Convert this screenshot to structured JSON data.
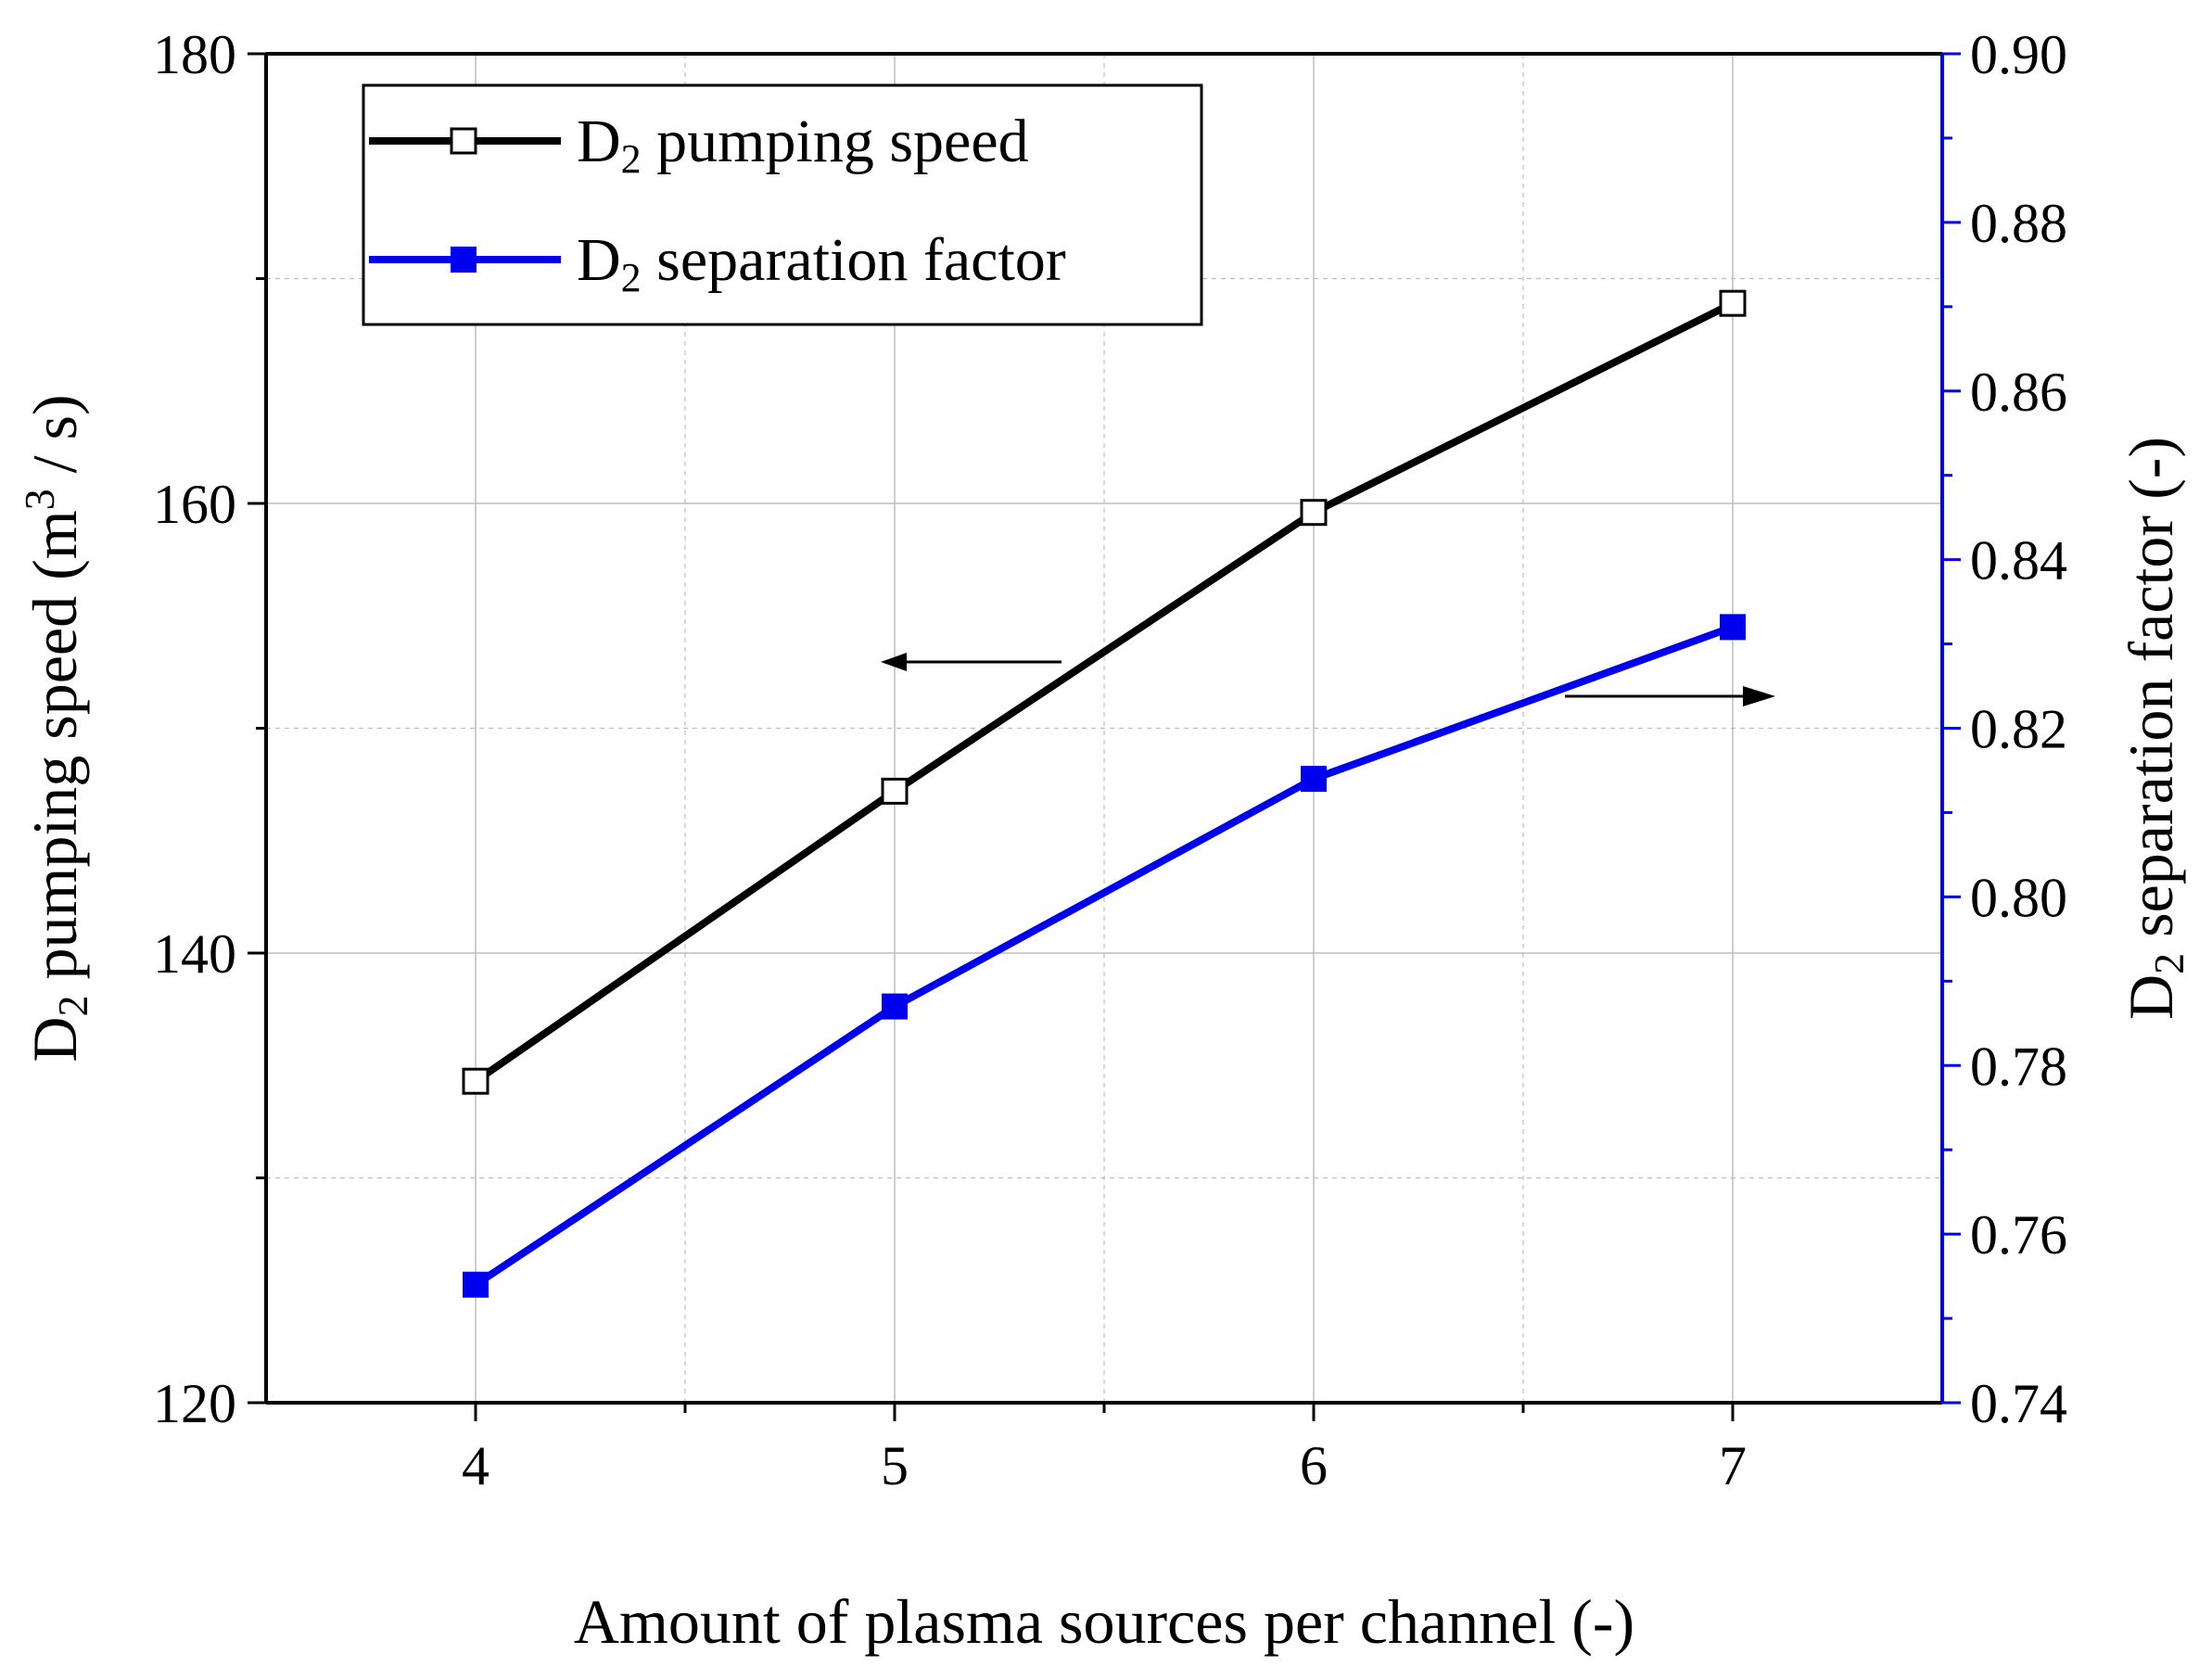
{
  "colors": {
    "primary": "#000000",
    "secondary": "#0000ee",
    "grid": "#bdbdbd",
    "background": "#ffffff"
  },
  "chart_data": {
    "type": "line",
    "title": "",
    "xlabel": "Amount of plasma sources per channel (-)",
    "ylabel": {
      "prefix": "D",
      "sub": "2",
      "mid": " pumping speed (m",
      "sup": "3",
      "suffix": " / s)"
    },
    "y2label": {
      "prefix": "D",
      "sub": "2",
      "suffix": " separation factor (-)"
    },
    "x": [
      4,
      5,
      6,
      7
    ],
    "xlim": [
      3.5,
      7.5
    ],
    "xticks": [
      4,
      5,
      6,
      7
    ],
    "xtick_labels": [
      "4",
      "5",
      "6",
      "7"
    ],
    "ylim": [
      120,
      180
    ],
    "yticks": [
      120,
      140,
      160,
      180
    ],
    "ytick_labels": [
      "120",
      "140",
      "160",
      "180"
    ],
    "y2lim": [
      0.74,
      0.9
    ],
    "y2ticks": [
      0.74,
      0.76,
      0.78,
      0.8,
      0.82,
      0.84,
      0.86,
      0.88,
      0.9
    ],
    "y2tick_labels": [
      "0.74",
      "0.76",
      "0.78",
      "0.80",
      "0.82",
      "0.84",
      "0.86",
      "0.88",
      "0.90"
    ],
    "grid": true,
    "legend_position": "top-left",
    "series": [
      {
        "name": "D2 pumping speed",
        "legend": {
          "prefix": "D",
          "sub": "2",
          "suffix": " pumping speed"
        },
        "axis": "left",
        "marker": "open-square",
        "color": "#000000",
        "values": [
          134.3,
          147.2,
          159.6,
          168.9
        ]
      },
      {
        "name": "D2 separation factor",
        "legend": {
          "prefix": "D",
          "sub": "2",
          "suffix": " separation factor"
        },
        "axis": "right",
        "marker": "filled-square",
        "color": "#0000ee",
        "values": [
          0.754,
          0.787,
          0.814,
          0.832
        ]
      }
    ],
    "annotations": [
      {
        "type": "arrow",
        "direction": "left",
        "points_to_axis": "left",
        "near_series": "D2 pumping speed"
      },
      {
        "type": "arrow",
        "direction": "right",
        "points_to_axis": "right",
        "near_series": "D2 separation factor"
      }
    ]
  }
}
